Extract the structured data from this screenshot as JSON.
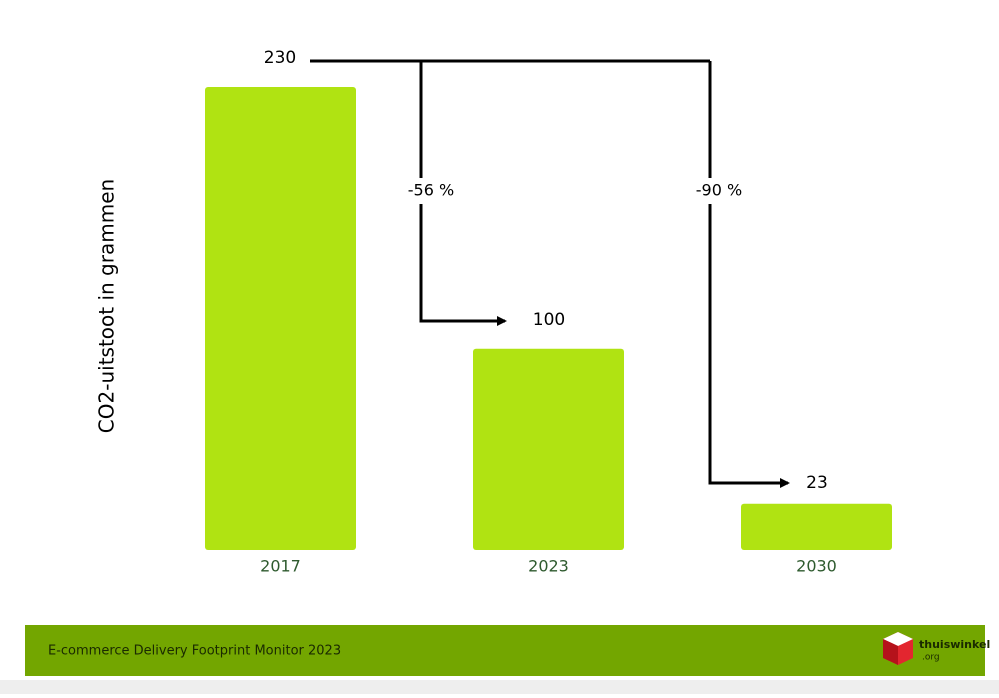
{
  "chart_data": {
    "type": "bar",
    "y_label": "CO2-uitstoot in grammen",
    "categories": [
      "2017",
      "2023",
      "2030"
    ],
    "values": [
      230,
      100,
      23
    ],
    "color": "#b0e312",
    "ylim": [
      0,
      230
    ],
    "annotations": [
      "-56 %",
      "-90 %"
    ]
  },
  "footer": {
    "title": "E-commerce Delivery Footprint Monitor 2023",
    "logo_name": "thuiswinkel",
    "logo_suffix": ".org"
  }
}
